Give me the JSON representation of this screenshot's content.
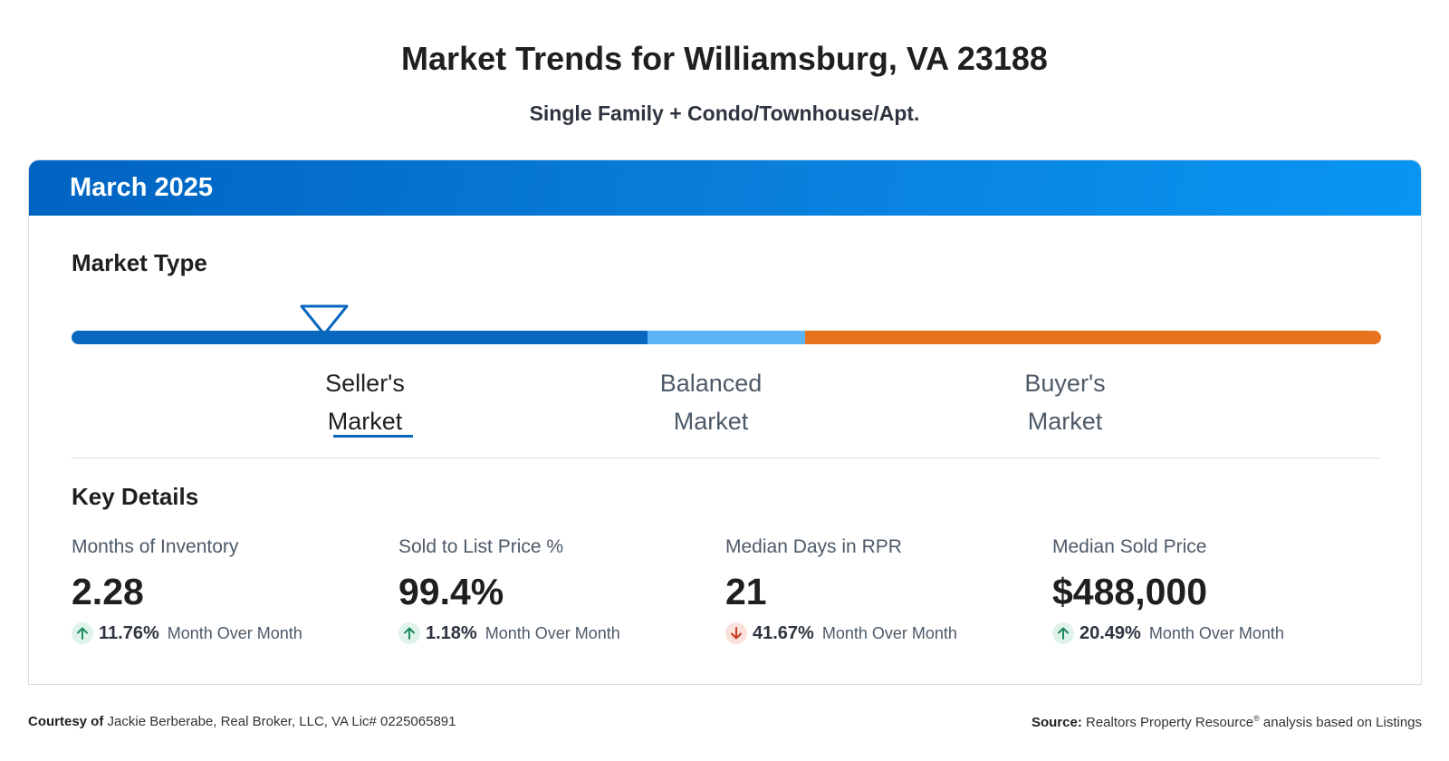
{
  "header": {
    "title": "Market Trends for Williamsburg, VA 23188",
    "subtitle": "Single Family + Condo/Townhouse/Apt."
  },
  "card": {
    "period": "March 2025",
    "market_type": {
      "heading": "Market Type",
      "current": "seller",
      "labels": {
        "seller_line1": "Seller's",
        "seller_line2": "Market",
        "balanced_line1": "Balanced",
        "balanced_line2": "Market",
        "buyer_line1": "Buyer's",
        "buyer_line2": "Market"
      },
      "colors": {
        "seller": "#0a67bf",
        "balanced": "#5bb4f5",
        "buyer": "#e8731e"
      }
    },
    "key_details": {
      "heading": "Key Details",
      "metrics": [
        {
          "label": "Months of Inventory",
          "value": "2.28",
          "direction": "up",
          "change": "11.76%",
          "change_label": "Month Over Month"
        },
        {
          "label": "Sold to List Price %",
          "value": "99.4%",
          "direction": "up",
          "change": "1.18%",
          "change_label": "Month Over Month"
        },
        {
          "label": "Median Days in RPR",
          "value": "21",
          "direction": "down",
          "change": "41.67%",
          "change_label": "Month Over Month"
        },
        {
          "label": "Median Sold Price",
          "value": "$488,000",
          "direction": "up",
          "change": "20.49%",
          "change_label": "Month Over Month"
        }
      ]
    }
  },
  "footer": {
    "courtesy_prefix": "Courtesy of",
    "courtesy_text": "Jackie Berberabe, Real Broker, LLC, VA Lic# 0225065891",
    "source_prefix": "Source:",
    "source_name": "Realtors Property Resource",
    "source_mark": "®",
    "source_suffix": "analysis based on Listings"
  },
  "icons": {
    "arrow_up_color": "#1e8a5f",
    "arrow_down_color": "#c63c22"
  }
}
